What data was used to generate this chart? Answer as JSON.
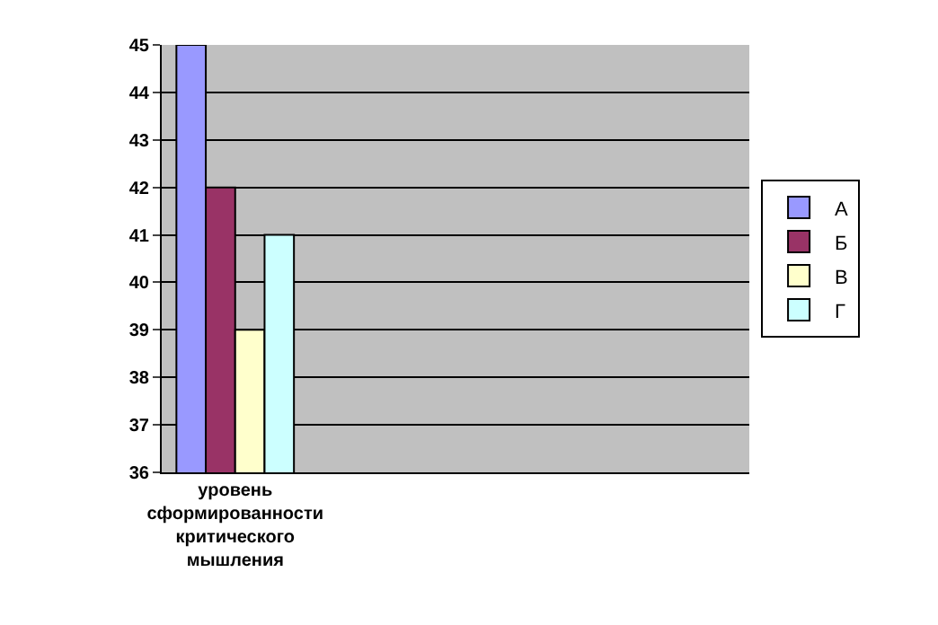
{
  "chart_data": {
    "type": "bar",
    "categories": [
      "уровень сформированности критического мышления",
      null,
      null,
      null
    ],
    "series": [
      {
        "name": "А",
        "color": "#9999ff",
        "values": [
          45,
          null,
          null,
          null
        ]
      },
      {
        "name": "Б",
        "color": "#993366",
        "values": [
          42,
          null,
          null,
          null
        ]
      },
      {
        "name": "В",
        "color": "#ffffcc",
        "values": [
          39,
          null,
          null,
          null
        ]
      },
      {
        "name": "Г",
        "color": "#ccffff",
        "values": [
          41,
          null,
          null,
          null
        ]
      }
    ],
    "ylim": [
      36,
      45
    ],
    "yticks": [
      36,
      37,
      38,
      39,
      40,
      41,
      42,
      43,
      44,
      45
    ],
    "grid": "y",
    "legend": "right"
  }
}
